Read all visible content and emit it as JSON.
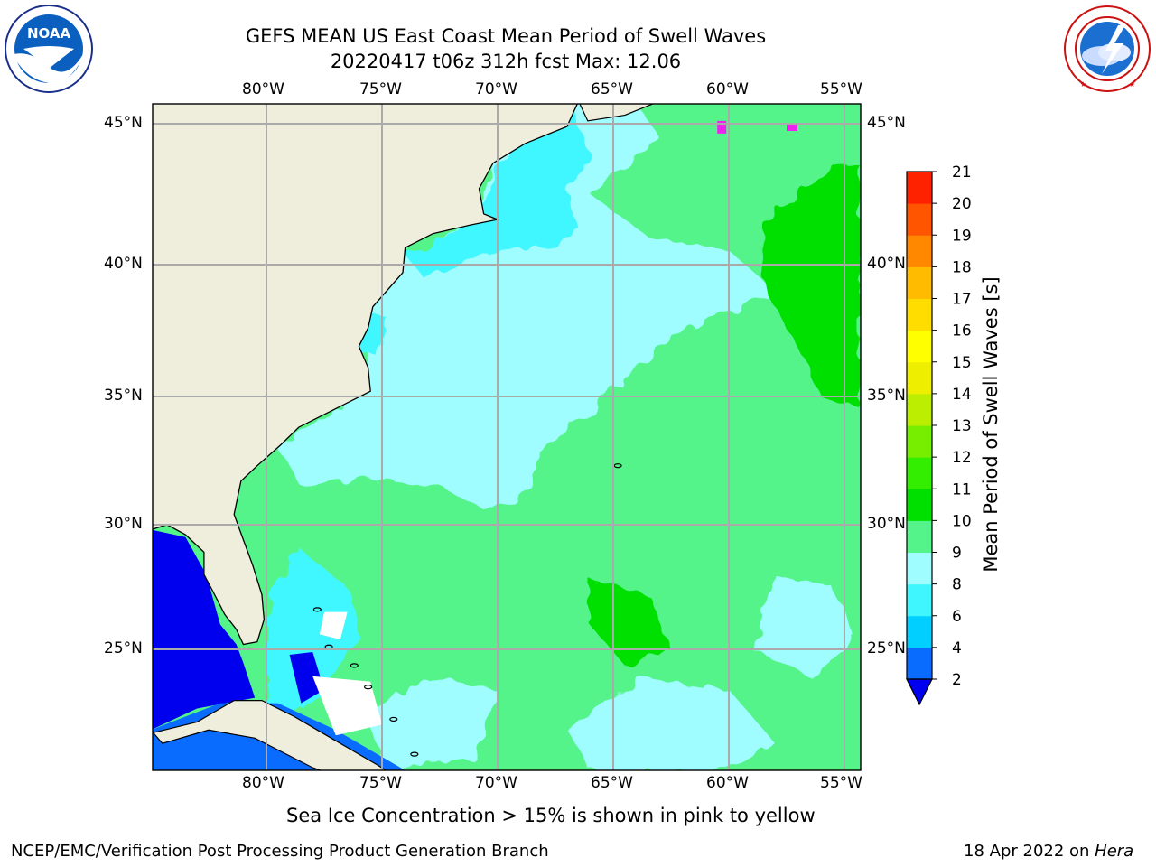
{
  "header": {
    "title_line1": "GEFS MEAN US East Coast Mean Period of Swell Waves",
    "title_line2": "20220417 t06z 312h fcst   Max: 12.06"
  },
  "logos": {
    "left_text": "NOAA",
    "left_ring_text": "NATIONAL OCEANIC AND ATMOSPHERIC ADMINISTRATION · U.S. DEPARTMENT OF COMMERCE",
    "right_ring_text": "NATIONAL WEATHER SERVICE"
  },
  "map": {
    "lon_labels": [
      "80°W",
      "75°W",
      "70°W",
      "65°W",
      "60°W",
      "55°W"
    ],
    "lat_labels": [
      "45°N",
      "40°N",
      "35°N",
      "30°N",
      "25°N"
    ],
    "lon_range": [
      -85,
      -54.3
    ],
    "lat_range": [
      20.5,
      45.8
    ]
  },
  "colorbar": {
    "label": "Mean Period of Swell Waves [s]",
    "ticks": [
      "2",
      "4",
      "6",
      "8",
      "9",
      "10",
      "11",
      "12",
      "13",
      "14",
      "15",
      "16",
      "17",
      "18",
      "19",
      "20",
      "21"
    ],
    "colors": [
      "#0a6cff",
      "#00cfff",
      "#3ff6ff",
      "#9ffdff",
      "#55f48a",
      "#00e000",
      "#33ee00",
      "#77ee00",
      "#bbee00",
      "#eeee00",
      "#ffff00",
      "#ffdd00",
      "#ffbb00",
      "#ff8800",
      "#ff5500",
      "#ff2200"
    ],
    "under_color": "#0000ee"
  },
  "palette": {
    "land": "#efeedd",
    "deep_blue": "#0000ee",
    "blue": "#0a6cff",
    "cyan": "#3ff6ff",
    "light_cyan": "#9ffdff",
    "green": "#55f48a",
    "bright_green": "#00e000",
    "ice_pink": "#ee22ee"
  },
  "footer": {
    "note": "Sea Ice Concentration > 15% is shown in pink to yellow",
    "credit": "NCEP/EMC/Verification Post Processing Product Generation Branch",
    "date": "18 Apr 2022 on ",
    "machine": "Hera"
  }
}
